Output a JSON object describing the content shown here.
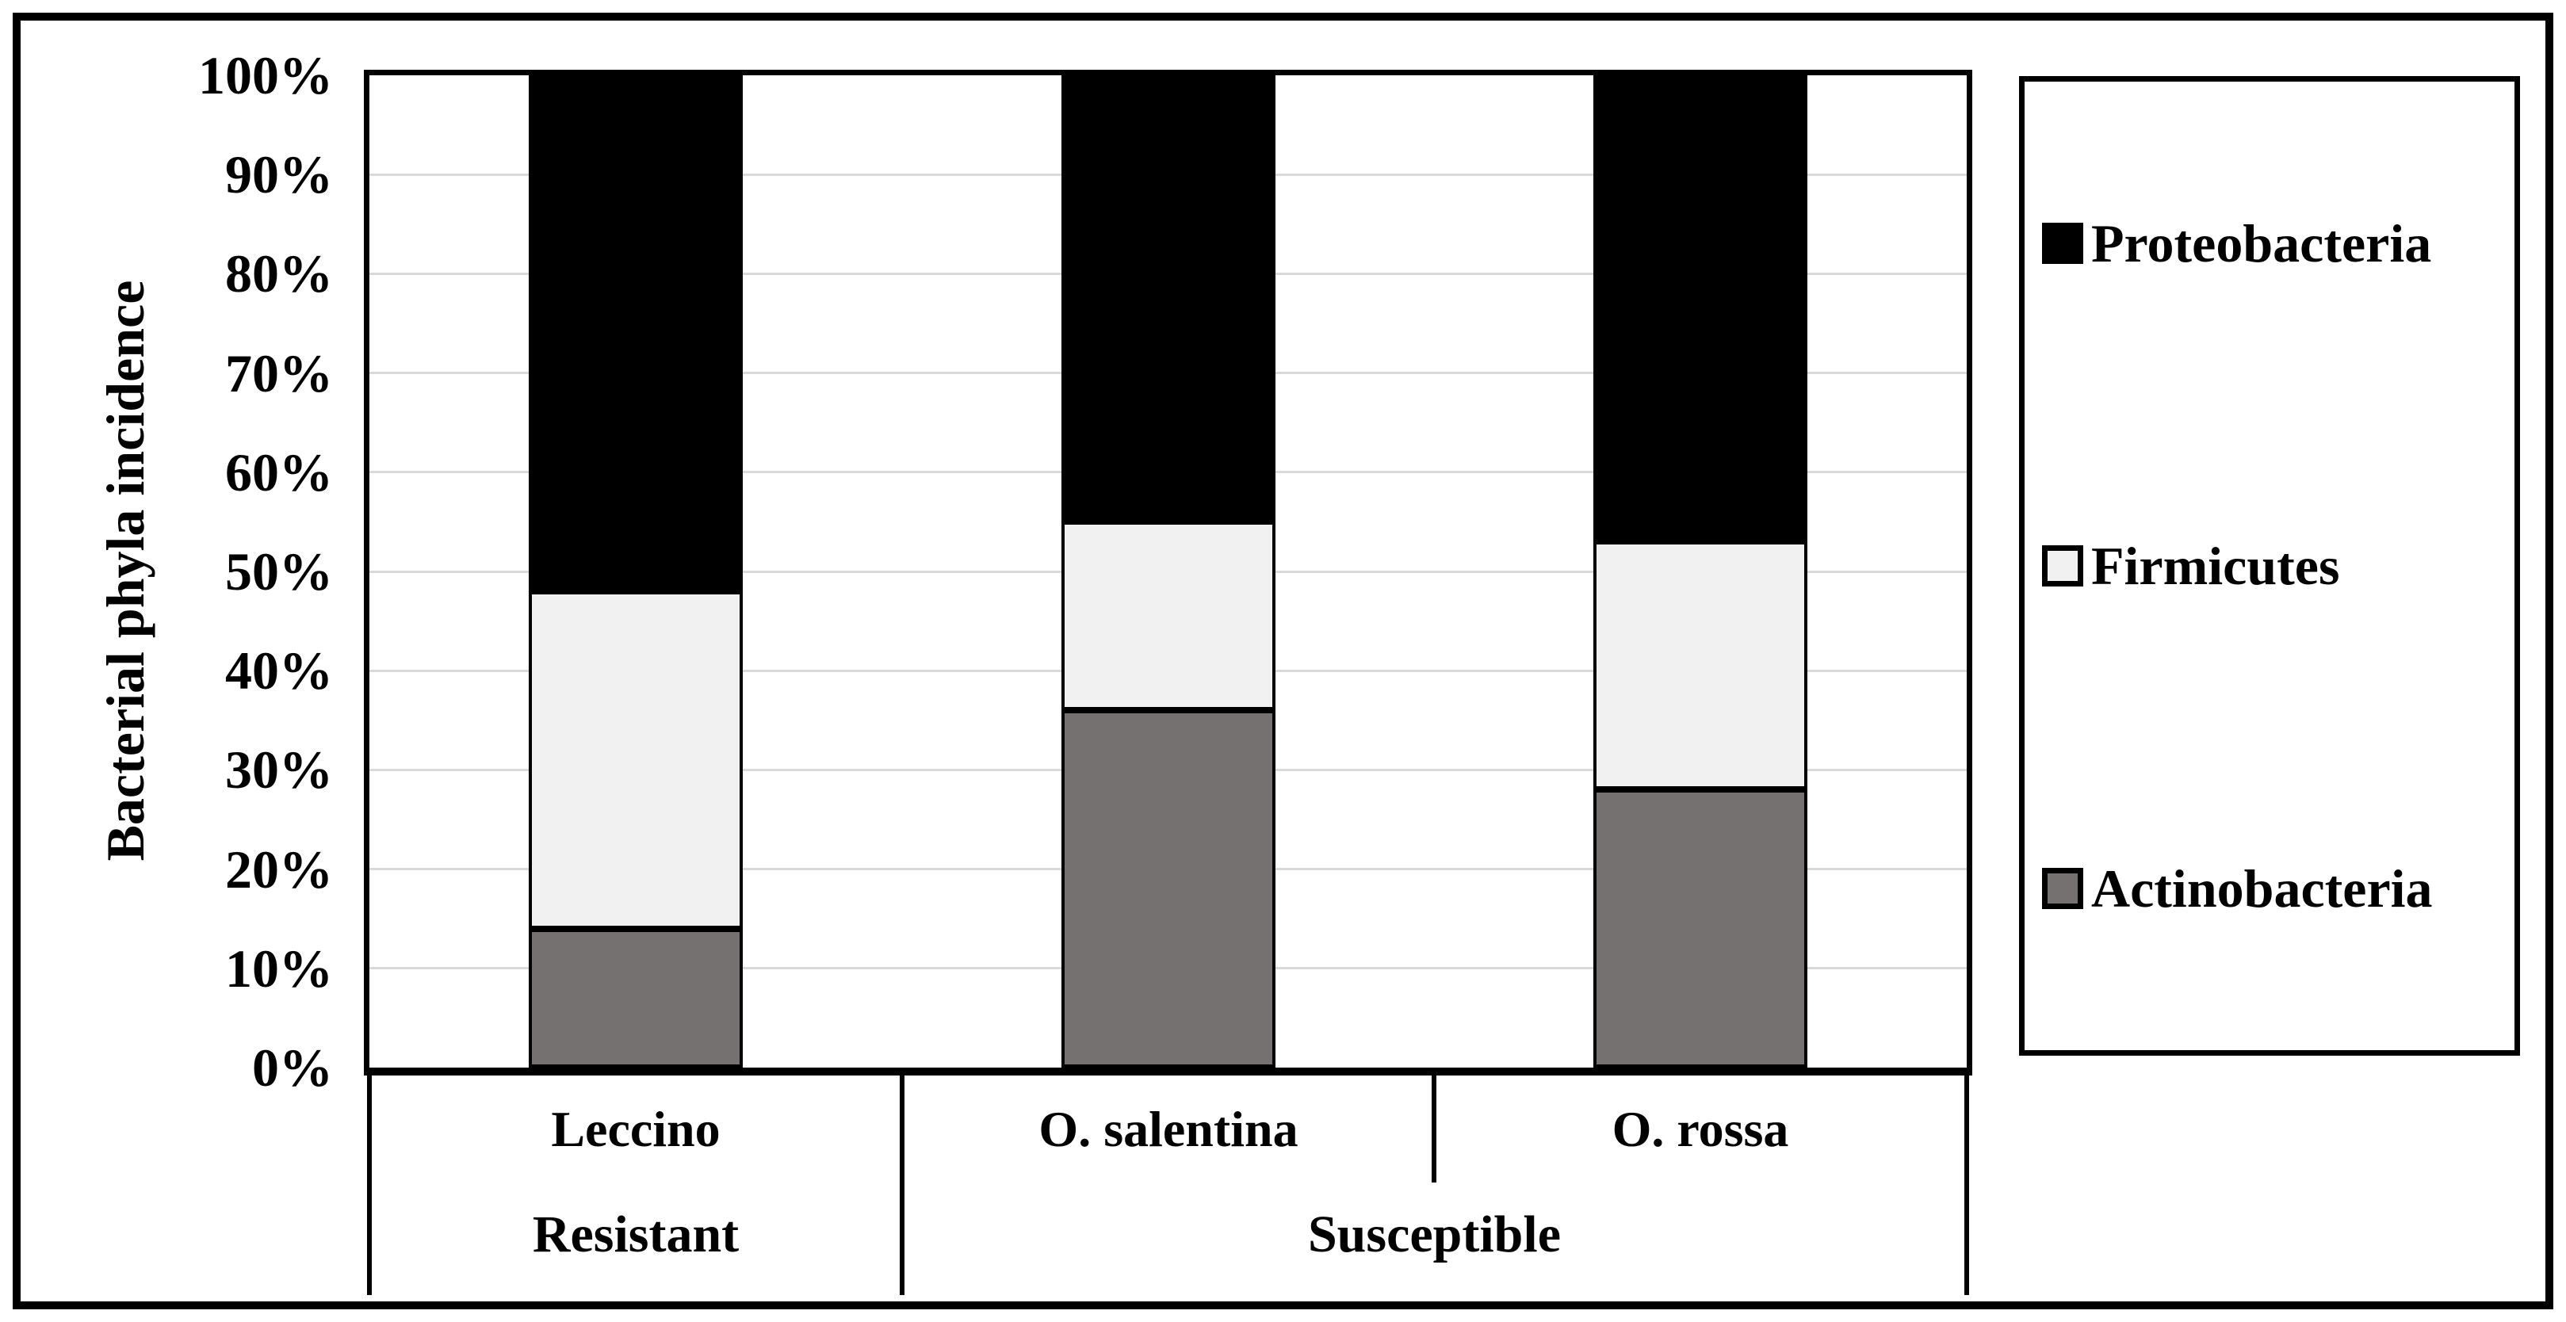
{
  "chart_data": {
    "type": "bar",
    "stacked": true,
    "percent_stacked": true,
    "title": "",
    "ylabel": "Bacterial phyla incidence",
    "xlabel": "",
    "ylim": [
      0,
      100
    ],
    "yticks": [
      "0%",
      "10%",
      "20%",
      "30%",
      "40%",
      "50%",
      "60%",
      "70%",
      "80%",
      "90%",
      "100%"
    ],
    "grid": true,
    "categories": [
      "Leccino",
      "O. salentina",
      "O. rossa"
    ],
    "category_groups": [
      {
        "label": "Resistant",
        "start": 0,
        "end": 0
      },
      {
        "label": "Susceptible",
        "start": 1,
        "end": 2
      }
    ],
    "series": [
      {
        "name": "Actinobacteria",
        "color": "#767171",
        "values": [
          14,
          36,
          28
        ]
      },
      {
        "name": "Firmicutes",
        "color": "#f1f1f1",
        "values": [
          34,
          19,
          25
        ]
      },
      {
        "name": "Proteobacteria",
        "color": "#000000",
        "values": [
          52,
          45,
          47
        ]
      }
    ],
    "legend": {
      "position": "right",
      "entries": [
        {
          "label": "Proteobacteria",
          "color": "#000000"
        },
        {
          "label": "Firmicutes",
          "color": "#f1f1f1"
        },
        {
          "label": "Actinobacteria",
          "color": "#767171"
        }
      ]
    },
    "colors": {
      "gridline": "#d9d9d9",
      "axis": "#000000",
      "background": "#ffffff",
      "border": "#000000"
    }
  }
}
